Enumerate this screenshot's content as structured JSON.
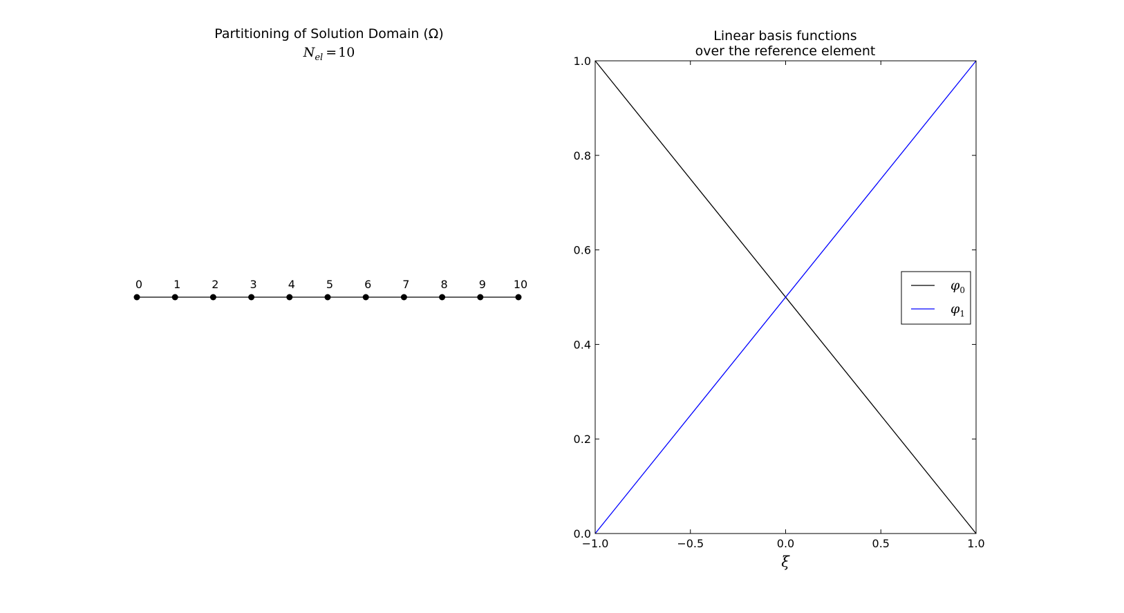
{
  "chart_data": [
    {
      "type": "scatter",
      "title": "Partitioning of Solution Domain (Ω)",
      "subtitle": "N_el = 10",
      "subtitle_parts": {
        "symbol": "N",
        "subscript": "el",
        "equals": "=",
        "value": "10"
      },
      "nodes": [
        0,
        1,
        2,
        3,
        4,
        5,
        6,
        7,
        8,
        9,
        10
      ],
      "node_labels": [
        "0",
        "1",
        "2",
        "3",
        "4",
        "5",
        "6",
        "7",
        "8",
        "9",
        "10"
      ],
      "y": 0,
      "axes_visible": false,
      "line_color": "#000000",
      "marker_color": "#000000"
    },
    {
      "type": "line",
      "title": "Linear basis functions\nover the reference element",
      "title_lines": [
        "Linear basis functions",
        "over the reference element"
      ],
      "xlabel": "ξ",
      "ylabel": "",
      "xlim": [
        -1.0,
        1.0
      ],
      "ylim": [
        0.0,
        1.0
      ],
      "x_ticks": [
        -1.0,
        -0.5,
        0.0,
        0.5,
        1.0
      ],
      "x_tick_labels": [
        "−1.0",
        "−0.5",
        "0.0",
        "0.5",
        "1.0"
      ],
      "y_ticks": [
        0.0,
        0.2,
        0.4,
        0.6,
        0.8,
        1.0
      ],
      "y_tick_labels": [
        "0.0",
        "0.2",
        "0.4",
        "0.6",
        "0.8",
        "1.0"
      ],
      "grid": false,
      "legend_position": "center-right",
      "series": [
        {
          "name": "φ0",
          "symbol": "φ",
          "subscript": "0",
          "color": "#000000",
          "x": [
            -1.0,
            1.0
          ],
          "y": [
            1.0,
            0.0
          ]
        },
        {
          "name": "φ1",
          "symbol": "φ",
          "subscript": "1",
          "color": "#0000ff",
          "x": [
            -1.0,
            1.0
          ],
          "y": [
            0.0,
            1.0
          ]
        }
      ]
    }
  ]
}
